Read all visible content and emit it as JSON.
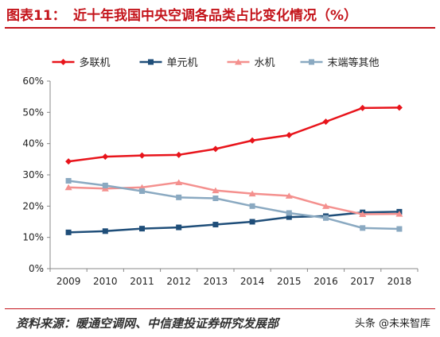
{
  "header": {
    "fig_label": "图表11：",
    "title": "近十年我国中央空调各品类占比变化情况（%）"
  },
  "chart_data": {
    "type": "line",
    "categories": [
      "2009",
      "2010",
      "2011",
      "2012",
      "2013",
      "2014",
      "2015",
      "2016",
      "2017",
      "2018"
    ],
    "series": [
      {
        "name": "多联机",
        "color": "#e8141b",
        "marker": "diamond",
        "values": [
          34.3,
          35.8,
          36.2,
          36.4,
          38.3,
          41.0,
          42.7,
          47.0,
          51.4,
          51.5
        ]
      },
      {
        "name": "单元机",
        "color": "#1f4e79",
        "marker": "square",
        "values": [
          11.6,
          12.0,
          12.8,
          13.2,
          14.1,
          15.0,
          16.5,
          16.8,
          18.0,
          18.2
        ]
      },
      {
        "name": "水机",
        "color": "#f4908e",
        "marker": "triangle",
        "values": [
          26.0,
          25.6,
          26.0,
          27.6,
          25.0,
          24.0,
          23.3,
          20.0,
          17.4,
          17.5
        ]
      },
      {
        "name": "末端等其他",
        "color": "#8aa9c1",
        "marker": "square",
        "values": [
          28.1,
          26.6,
          24.8,
          22.8,
          22.5,
          20.0,
          17.8,
          16.2,
          13.0,
          12.7
        ]
      }
    ],
    "yticks": [
      "0%",
      "10%",
      "20%",
      "30%",
      "40%",
      "50%",
      "60%"
    ],
    "ylim": [
      0,
      60
    ],
    "legend_position": "top",
    "grid": false
  },
  "footer": {
    "source": "资料来源：暖通空调网、中信建投证券研究发展部",
    "watermark": "头条 @未来智库"
  }
}
